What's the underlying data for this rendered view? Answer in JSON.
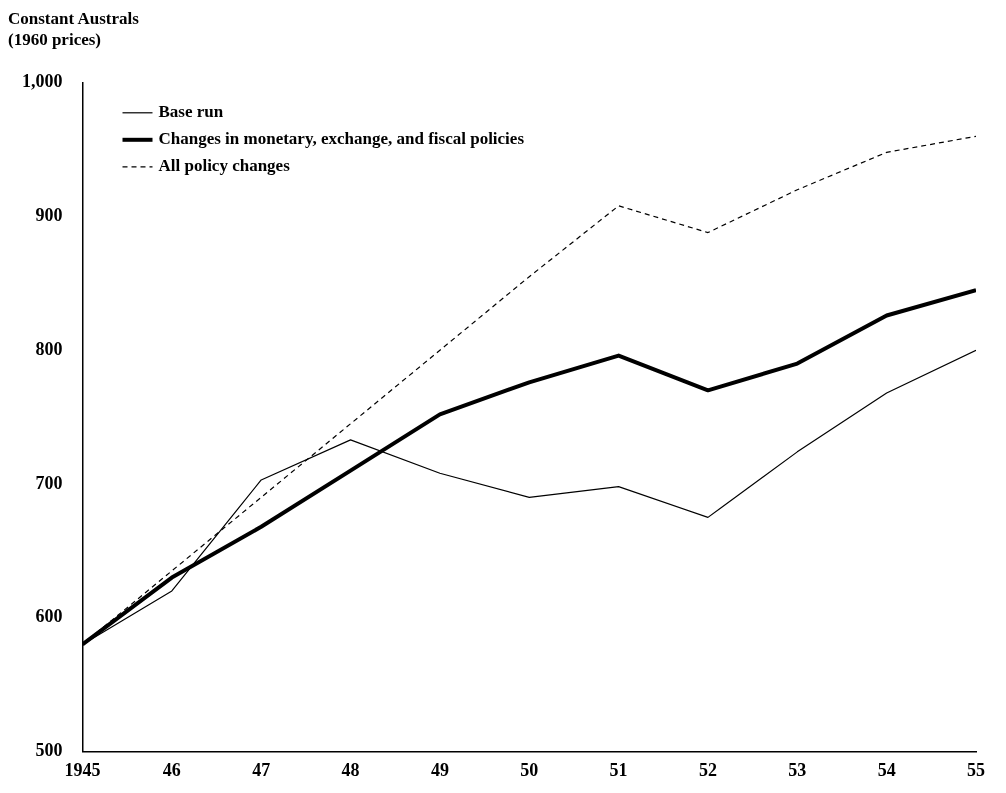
{
  "chart_data": {
    "type": "line",
    "ylabel": "Constant Australs\n(1960 prices)",
    "x": [
      1945,
      1946,
      1947,
      1948,
      1949,
      1950,
      1951,
      1952,
      1953,
      1954,
      1955
    ],
    "series": [
      {
        "name": "Base run",
        "color": "#000000",
        "line_style": "solid",
        "values": [
          580,
          620,
          703,
          733,
          708,
          690,
          698,
          675,
          724,
          768,
          800
        ]
      },
      {
        "name": "Changes in monetary, exchange, and fiscal policies",
        "color": "#000000",
        "line_style": "solid",
        "values": [
          580,
          630,
          668,
          710,
          752,
          776,
          796,
          770,
          790,
          826,
          845
        ]
      },
      {
        "name": "All policy changes",
        "color": "#000000",
        "line_style": "dashed",
        "values": [
          580,
          635,
          690,
          745,
          800,
          855,
          908,
          888,
          920,
          948,
          960
        ]
      }
    ],
    "xlim": [
      1945,
      1955
    ],
    "xticks": [
      {
        "value": 1945,
        "label": "1945"
      },
      {
        "value": 1946,
        "label": "46"
      },
      {
        "value": 1947,
        "label": "47"
      },
      {
        "value": 1948,
        "label": "48"
      },
      {
        "value": 1949,
        "label": "49"
      },
      {
        "value": 1950,
        "label": "50"
      },
      {
        "value": 1951,
        "label": "51"
      },
      {
        "value": 1952,
        "label": "52"
      },
      {
        "value": 1953,
        "label": "53"
      },
      {
        "value": 1954,
        "label": "54"
      },
      {
        "value": 1955,
        "label": "55"
      }
    ],
    "ylim": [
      500,
      1000
    ],
    "yticks": [
      500,
      600,
      700,
      800,
      900,
      {
        "value": 1000,
        "label": "1,000"
      }
    ],
    "grid": false,
    "legend": "top left",
    "marker": "none"
  }
}
